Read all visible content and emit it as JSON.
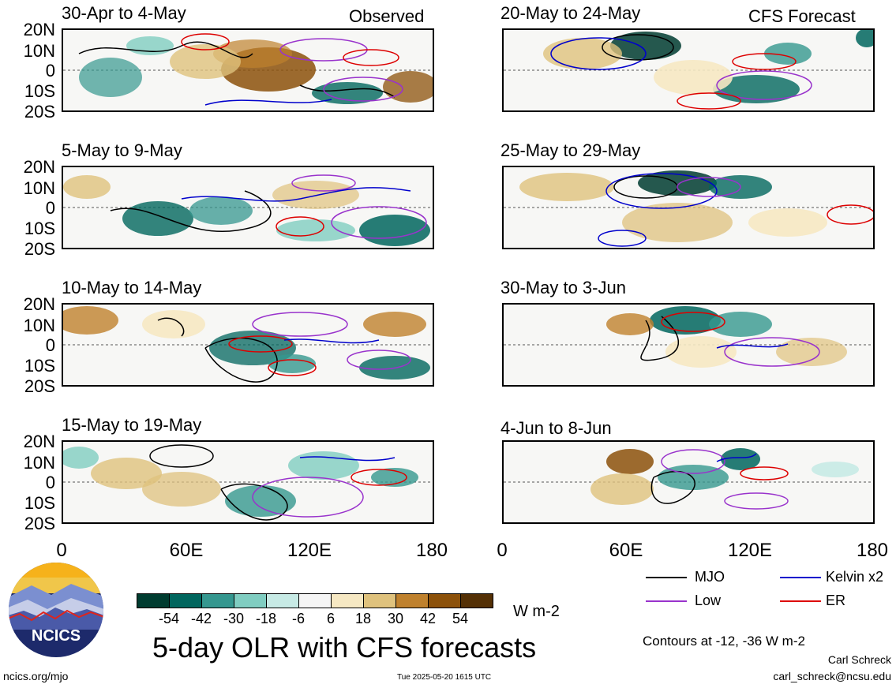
{
  "left_header_tag": "Observed",
  "right_header_tag": "CFS Forecast",
  "lat_ticks": [
    "20N",
    "10N",
    "0",
    "10S",
    "20S"
  ],
  "lon_ticks": [
    "0",
    "60E",
    "120E",
    "180"
  ],
  "panels_left": [
    {
      "title": "30-Apr to 4-May"
    },
    {
      "title": "5-May to 9-May"
    },
    {
      "title": "10-May to 14-May"
    },
    {
      "title": "15-May to 19-May"
    }
  ],
  "panels_right": [
    {
      "title": "20-May to 24-May"
    },
    {
      "title": "25-May to 29-May"
    },
    {
      "title": "30-May to 3-Jun"
    },
    {
      "title": "4-Jun to 8-Jun"
    }
  ],
  "colorbar": {
    "colors": [
      "#003c30",
      "#01665e",
      "#35978f",
      "#80cdc1",
      "#c7eae5",
      "#f5f5f5",
      "#f6e8c3",
      "#dfc27d",
      "#bf812d",
      "#8c510a",
      "#543005"
    ],
    "labels": [
      "-54",
      "-42",
      "-30",
      "-18",
      "-6",
      "6",
      "18",
      "30",
      "42",
      "54"
    ],
    "unit": "W m-2"
  },
  "legend": {
    "mjo": {
      "label": "MJO",
      "color": "#000000"
    },
    "kelvin": {
      "label": "Kelvin x2",
      "color": "#0000cc"
    },
    "low": {
      "label": "Low",
      "color": "#9933cc"
    },
    "er": {
      "label": "ER",
      "color": "#dd0000"
    }
  },
  "contours_note": "Contours at -12, -36 W m-2",
  "main_title": "5-day OLR with CFS forecasts",
  "author": "Carl Schreck",
  "email": "carl_schreck@ncsu.edu",
  "site": "ncics.org/mjo",
  "timestamp": "Tue 2025-05-20 1615 UTC",
  "logo_text": "NCICS"
}
